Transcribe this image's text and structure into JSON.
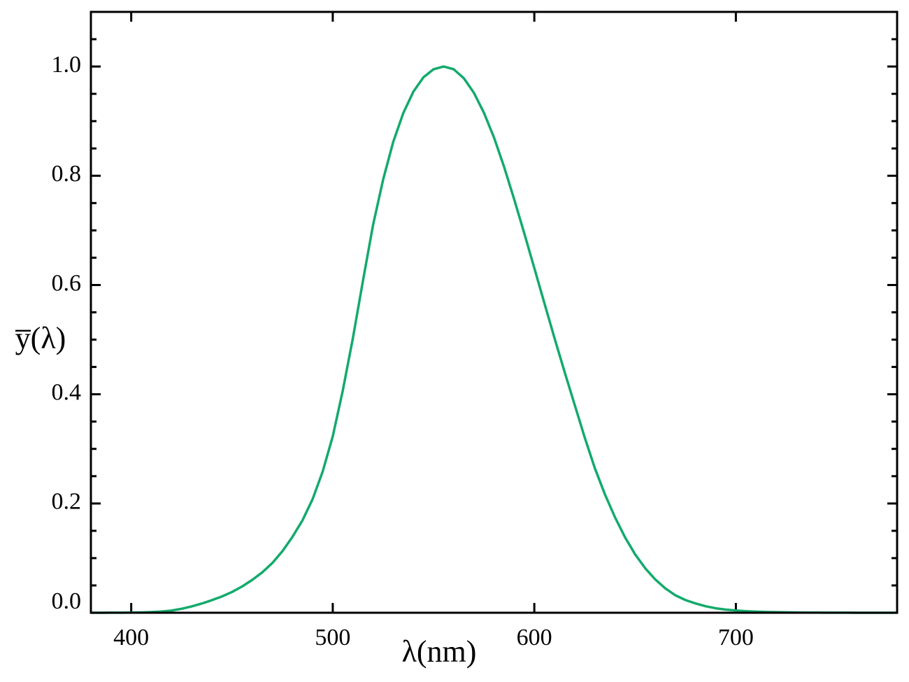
{
  "chart_data": {
    "type": "line",
    "xlabel": "λ(nm)",
    "ylabel": "y̅(λ)",
    "color": "#13aa6b",
    "xlim": [
      380,
      780
    ],
    "ylim": [
      0,
      1.1
    ],
    "xticks": [
      400,
      500,
      600,
      700
    ],
    "yticks": [
      {
        "value": 0,
        "label": "0.0"
      },
      0.2,
      0.4,
      0.6,
      0.8,
      {
        "value": 1,
        "label": "1.0"
      }
    ],
    "yminorticks": [
      0.05,
      0.1,
      0.15,
      0.25,
      0.3,
      0.35,
      0.45,
      0.5,
      0.55,
      0.65,
      0.7,
      0.75,
      0.85,
      0.9,
      0.95,
      1.05
    ],
    "x": [
      380,
      385,
      390,
      395,
      400,
      405,
      410,
      415,
      420,
      425,
      430,
      435,
      440,
      445,
      450,
      455,
      460,
      465,
      470,
      475,
      480,
      485,
      490,
      495,
      500,
      505,
      510,
      515,
      520,
      525,
      530,
      535,
      540,
      545,
      550,
      555,
      560,
      565,
      570,
      575,
      580,
      585,
      590,
      595,
      600,
      605,
      610,
      615,
      620,
      625,
      630,
      635,
      640,
      645,
      650,
      655,
      660,
      665,
      670,
      675,
      680,
      685,
      690,
      695,
      700,
      705,
      710,
      715,
      720,
      725,
      730,
      735,
      740,
      745,
      750,
      755,
      760,
      765,
      770,
      775,
      780
    ],
    "values": [
      3.9e-05,
      6.4e-05,
      0.00012,
      0.000217,
      0.000396,
      0.00064,
      0.00121,
      0.00218,
      0.004,
      0.0073,
      0.0116,
      0.01684,
      0.023,
      0.0298,
      0.038,
      0.048,
      0.06,
      0.0739,
      0.09098,
      0.1126,
      0.13902,
      0.1693,
      0.20802,
      0.2586,
      0.323,
      0.4073,
      0.503,
      0.6082,
      0.71,
      0.7932,
      0.862,
      0.91485,
      0.954,
      0.9803,
      0.99495,
      1.0,
      0.995,
      0.9786,
      0.952,
      0.9154,
      0.87,
      0.8163,
      0.757,
      0.6949,
      0.631,
      0.5668,
      0.503,
      0.4412,
      0.381,
      0.321,
      0.265,
      0.217,
      0.175,
      0.1382,
      0.107,
      0.0816,
      0.061,
      0.04458,
      0.032,
      0.0232,
      0.017,
      0.01192,
      0.00821,
      0.005723,
      0.004102,
      0.002929,
      0.002091,
      0.001484,
      0.001047,
      0.00074,
      0.00052,
      0.000361,
      0.000249,
      0.000172,
      0.00012,
      8.5e-05,
      6e-05,
      4.2e-05,
      3e-05,
      2.1e-05,
      1.5e-05
    ]
  }
}
